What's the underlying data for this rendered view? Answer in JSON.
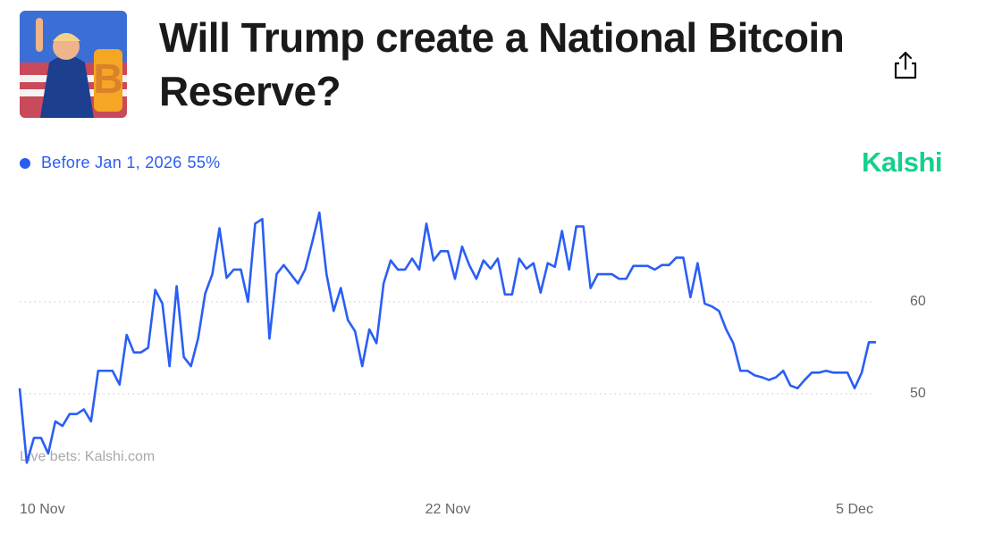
{
  "chart_data": {
    "type": "line",
    "title": "Will Trump create a National Bitcoin Reserve?",
    "brand": "Kalshi",
    "watermark": "Live bets: Kalshi.com",
    "current_label": "55%",
    "series": [
      {
        "name": "Before Jan 1, 2026",
        "color": "#2a5ef5",
        "values": [
          50.6,
          42.5,
          45.2,
          45.2,
          43.5,
          47,
          46.5,
          47.8,
          47.8,
          48.3,
          47,
          52.5,
          52.5,
          52.5,
          51,
          56.4,
          54.5,
          54.5,
          55,
          61.3,
          59.8,
          53,
          61.7,
          54,
          53,
          56,
          60.9,
          63,
          68,
          62.6,
          63.5,
          63.5,
          60,
          68.5,
          69,
          56,
          63,
          64,
          63,
          62,
          63.5,
          66.5,
          69.7,
          63,
          59,
          61.5,
          58,
          56.8,
          53,
          57,
          55.5,
          62,
          64.5,
          63.5,
          63.5,
          64.7,
          63.5,
          68.5,
          64.5,
          65.5,
          65.5,
          62.5,
          66,
          64,
          62.5,
          64.5,
          63.6,
          64.7,
          60.8,
          60.8,
          64.7,
          63.6,
          64.2,
          61,
          64.2,
          63.8,
          67.7,
          63.5,
          68.2,
          68.2,
          61.5,
          63,
          63,
          63,
          62.5,
          62.5,
          63.9,
          63.9,
          63.9,
          63.5,
          64,
          64,
          64.8,
          64.8,
          60.5,
          64.2,
          59.8,
          59.5,
          59,
          57,
          55.5,
          52.5,
          52.5,
          52,
          51.8,
          51.5,
          51.8,
          52.5,
          50.9,
          50.6,
          51.5,
          52.3,
          52.3,
          52.5,
          52.3,
          52.3,
          52.3,
          50.6,
          52.3,
          55.6,
          55.6
        ]
      }
    ],
    "xticks": [
      {
        "value": 0,
        "label": "10 Nov"
      },
      {
        "value": 60,
        "label": "22 Nov"
      },
      {
        "value": 117,
        "label": "5 Dec"
      }
    ],
    "ylim": [
      41,
      71
    ],
    "yticks": [
      50,
      60
    ],
    "grid": true
  }
}
